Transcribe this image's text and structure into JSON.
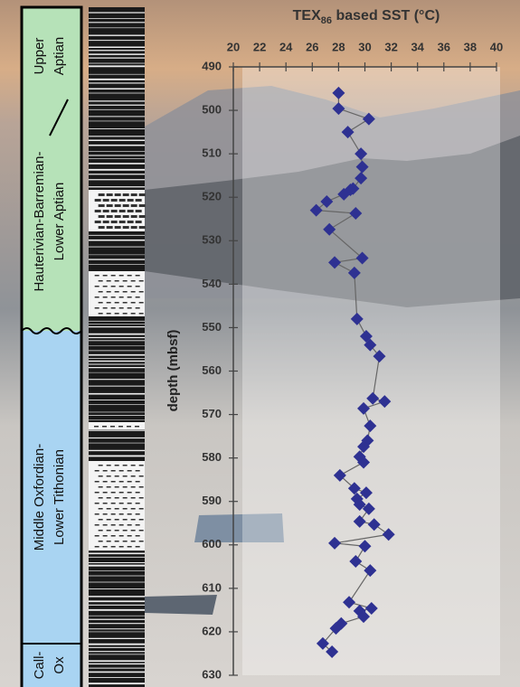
{
  "chart_data": {
    "type": "scatter",
    "title": {
      "main": "TEX",
      "subscript": "86",
      "rest": " based SST (°C)"
    },
    "y_label": "depth (mbsf)",
    "xlim": [
      20,
      40
    ],
    "xticks": [
      20,
      22,
      24,
      26,
      28,
      30,
      32,
      34,
      36,
      38,
      40
    ],
    "ylim": [
      490,
      630
    ],
    "yticks": [
      490,
      500,
      510,
      520,
      530,
      540,
      550,
      560,
      570,
      580,
      590,
      600,
      610,
      620,
      630
    ],
    "y_reversed": true,
    "color": "#2e3192",
    "line_color": "#666666",
    "x": [
      28.0,
      28.0,
      30.3,
      28.7,
      29.7,
      29.8,
      29.7,
      29.1,
      28.9,
      28.4,
      27.1,
      26.3,
      29.3,
      27.3,
      29.8,
      27.7,
      29.2,
      29.4,
      30.1,
      30.4,
      31.1,
      30.6,
      31.5,
      29.9,
      30.4,
      30.2,
      29.9,
      29.6,
      29.9,
      28.1,
      29.2,
      30.1,
      29.4,
      29.6,
      30.3,
      29.6,
      30.7,
      31.8,
      27.7,
      30.0,
      29.3,
      30.4,
      28.8,
      30.5,
      29.6,
      29.9,
      28.2,
      27.8,
      26.8,
      27.5
    ],
    "y": [
      496,
      499.6,
      502,
      505,
      510,
      513,
      515.6,
      518,
      518.3,
      519.3,
      521,
      523,
      523.7,
      527.4,
      534,
      535,
      537.4,
      548,
      552,
      554,
      556.6,
      566.3,
      567,
      568.6,
      572.6,
      576,
      577.4,
      579.7,
      581,
      584,
      587,
      588,
      589.4,
      590.7,
      591.7,
      594.6,
      595.3,
      597.6,
      599.6,
      600.3,
      603.8,
      605.9,
      613.2,
      614.6,
      615.2,
      616.5,
      618.1,
      619.2,
      622.7,
      624.6
    ]
  },
  "stratigraphy": [
    {
      "lines": [
        "Upper",
        "Aptian"
      ],
      "color": "#b6e2b8"
    },
    {
      "lines": [
        "Hauterivian-Barremian-",
        "Lower Aptian"
      ],
      "color": "#b6e2b8"
    },
    {
      "lines": [
        "Middle Oxfordian-",
        "Lower Tithonian"
      ],
      "color": "#a9d4f2"
    },
    {
      "lines": [
        "Call-",
        "Ox"
      ],
      "color": "#a9d4f2"
    }
  ]
}
